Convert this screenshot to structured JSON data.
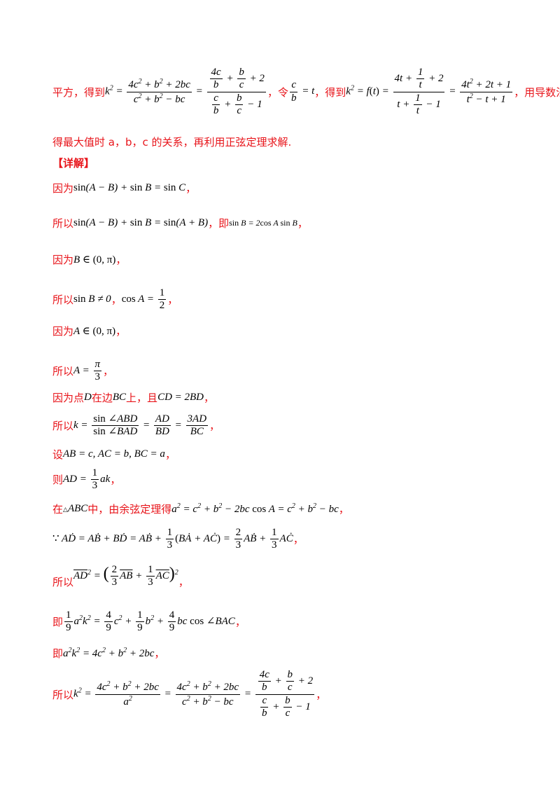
{
  "lines": {
    "l1_a": "平方，得到",
    "l1_b": "，令",
    "l1_c": "，得到",
    "l1_d": "，用导数法求",
    "l2": "得最大值时 a，b，c 的关系，再利用正弦定理求解.",
    "detail": "【详解】",
    "l3": "因为",
    "l4": "所以",
    "l4_b": "，即",
    "l5": "因为",
    "l6": "所以",
    "l7": "因为",
    "l8": "所以",
    "l9_a": "因为点",
    "l9_b": "在边",
    "l9_c": "上，且",
    "l10": "所以",
    "l11": "设",
    "l12": "则",
    "l13": "在",
    "l13_b": "中，由余弦定理得",
    "l15": "所以",
    "l16": "即",
    "l17": "即",
    "l18": "所以",
    "comma": "，"
  },
  "colors": {
    "red": "#e8151b",
    "black": "#000000"
  }
}
